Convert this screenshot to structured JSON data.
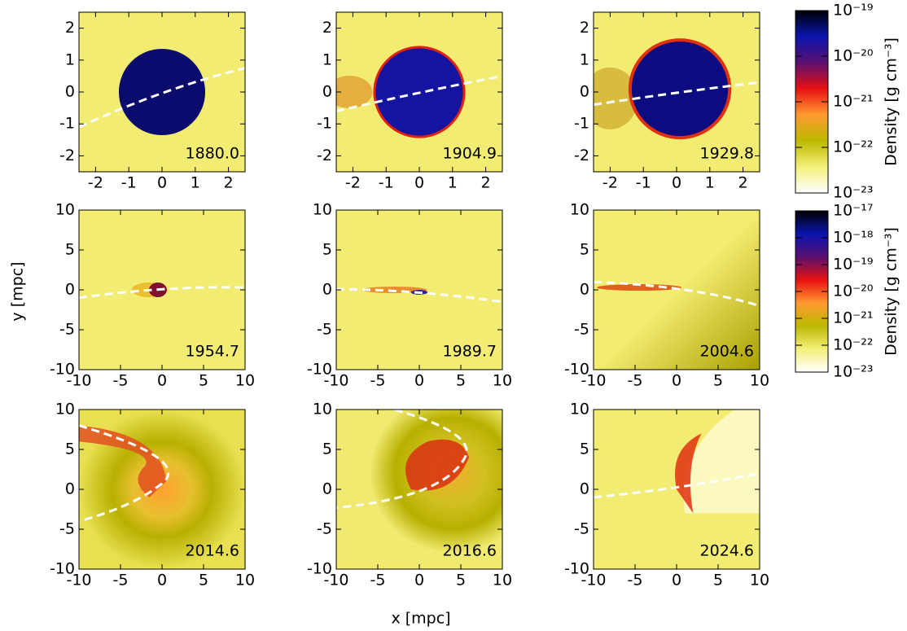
{
  "chart_data": [
    {
      "type": "image",
      "label": "1880.0",
      "xlim": [
        -2.5,
        2.5
      ],
      "ylim": [
        -2.5,
        2.5
      ],
      "xticks": [
        -2,
        -1,
        0,
        1,
        2
      ],
      "yticks": [
        -2,
        -1,
        0,
        1,
        2
      ]
    },
    {
      "type": "image",
      "label": "1904.9",
      "xlim": [
        -2.5,
        2.5
      ],
      "ylim": [
        -2.5,
        2.5
      ],
      "xticks": [
        -2,
        -1,
        0,
        1,
        2
      ],
      "yticks": [
        -2,
        -1,
        0,
        1,
        2
      ]
    },
    {
      "type": "image",
      "label": "1929.8",
      "xlim": [
        -2.5,
        2.5
      ],
      "ylim": [
        -2.5,
        2.5
      ],
      "xticks": [
        -2,
        -1,
        0,
        1,
        2
      ],
      "yticks": [
        -2,
        -1,
        0,
        1,
        2
      ]
    },
    {
      "type": "image",
      "label": "1954.7",
      "xlim": [
        -10,
        10
      ],
      "ylim": [
        -10,
        10
      ],
      "xticks": [
        -10,
        -5,
        0,
        5,
        10
      ],
      "yticks": [
        -10,
        -5,
        0,
        5,
        10
      ]
    },
    {
      "type": "image",
      "label": "1989.7",
      "xlim": [
        -10,
        10
      ],
      "ylim": [
        -10,
        10
      ],
      "xticks": [
        -10,
        -5,
        0,
        5,
        10
      ],
      "yticks": [
        -10,
        -5,
        0,
        5,
        10
      ]
    },
    {
      "type": "image",
      "label": "2004.6",
      "xlim": [
        -10,
        10
      ],
      "ylim": [
        -10,
        10
      ],
      "xticks": [
        -10,
        -5,
        0,
        5,
        10
      ],
      "yticks": [
        -10,
        -5,
        0,
        5,
        10
      ]
    },
    {
      "type": "image",
      "label": "2014.6",
      "xlim": [
        -10,
        10
      ],
      "ylim": [
        -10,
        10
      ],
      "xticks": [
        -10,
        -5,
        0,
        5,
        10
      ],
      "yticks": [
        -10,
        -5,
        0,
        5,
        10
      ]
    },
    {
      "type": "image",
      "label": "2016.6",
      "xlim": [
        -10,
        10
      ],
      "ylim": [
        -10,
        10
      ],
      "xticks": [
        -10,
        -5,
        0,
        5,
        10
      ],
      "yticks": [
        -10,
        -5,
        0,
        5,
        10
      ]
    },
    {
      "type": "image",
      "label": "2024.6",
      "xlim": [
        -10,
        10
      ],
      "ylim": [
        -10,
        10
      ],
      "xticks": [
        -10,
        -5,
        0,
        5,
        10
      ],
      "yticks": [
        -10,
        -5,
        0,
        5,
        10
      ]
    },
    {
      "type": "colorbar",
      "label": "Density [g cm⁻³]",
      "log": true,
      "ylim": [
        1e-23,
        1e-19
      ],
      "yticks": [
        {
          "value": 1e-23,
          "label": "10⁻²³"
        },
        {
          "value": 1e-22,
          "label": "10⁻²²"
        },
        {
          "value": 1e-21,
          "label": "10⁻²¹"
        },
        {
          "value": 1e-20,
          "label": "10⁻²⁰"
        },
        {
          "value": 1e-19,
          "label": "10⁻¹⁹"
        }
      ],
      "colormap": [
        "#ffffff",
        "#f5f07a",
        "#bcb800",
        "#ff9a30",
        "#e81010",
        "#5a1070",
        "#0a14b0",
        "#000000"
      ]
    },
    {
      "type": "colorbar",
      "label": "Density [g cm⁻³]",
      "log": true,
      "ylim": [
        1e-23,
        1e-17
      ],
      "yticks": [
        {
          "value": 1e-23,
          "label": "10⁻²³"
        },
        {
          "value": 1e-22,
          "label": "10⁻²²"
        },
        {
          "value": 1e-21,
          "label": "10⁻²¹"
        },
        {
          "value": 1e-20,
          "label": "10⁻²⁰"
        },
        {
          "value": 1e-19,
          "label": "10⁻¹⁹"
        },
        {
          "value": 1e-18,
          "label": "10⁻¹⁸"
        },
        {
          "value": 1e-17,
          "label": "10⁻¹⁷"
        }
      ],
      "colormap": [
        "#ffffff",
        "#f5f07a",
        "#bcb800",
        "#ff9a30",
        "#e81010",
        "#5a1070",
        "#0a14b0",
        "#000000"
      ]
    }
  ],
  "figure_labels": {
    "xlabel": "x [mpc]",
    "ylabel": "y [mpc]"
  }
}
